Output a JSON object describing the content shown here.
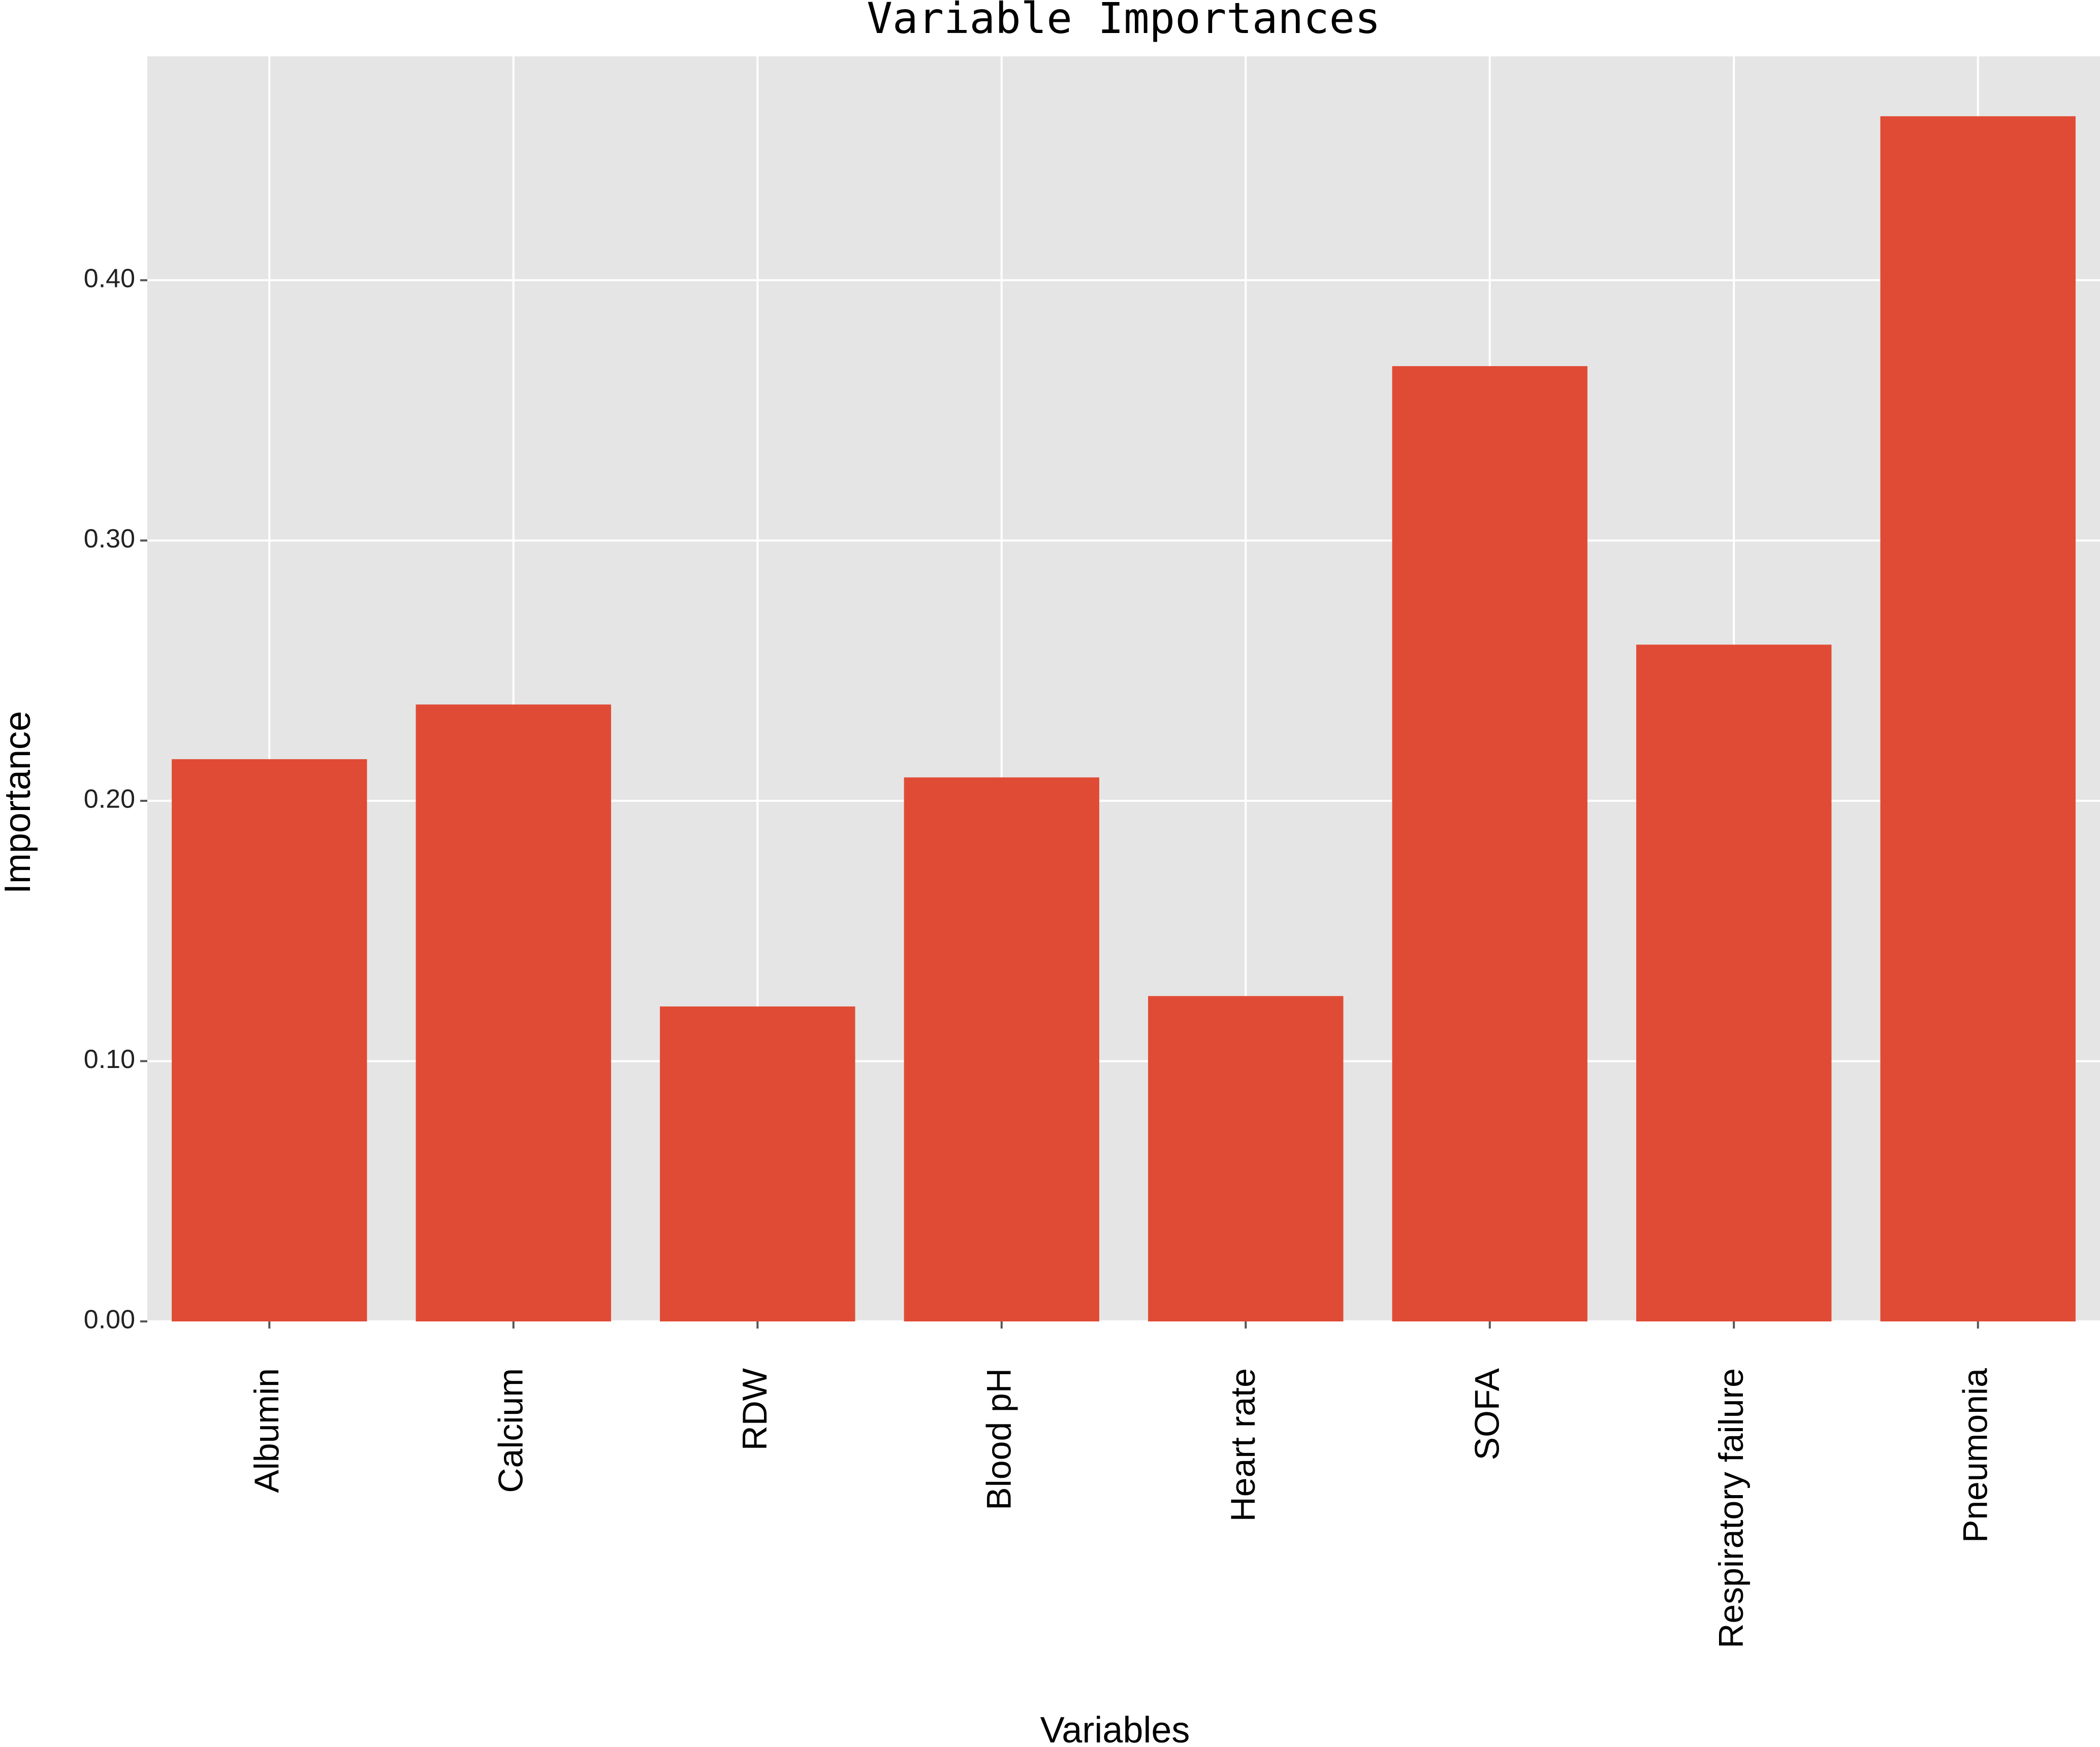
{
  "chart_data": {
    "type": "bar",
    "title": "Variable Importances",
    "x_label": "Variables",
    "y_label": "Importance",
    "categories": [
      "Albumin",
      "Calcium",
      "RDW",
      "Blood pH",
      "Heart rate",
      "SOFA",
      "Respiratory failure",
      "Pneumonia"
    ],
    "values": [
      0.216,
      0.237,
      0.121,
      0.209,
      0.125,
      0.367,
      0.26,
      0.463
    ],
    "color": "#e04b35",
    "ylim": [
      0,
      0.486
    ],
    "yticks": [
      {
        "value": 0,
        "label": "0.00"
      },
      {
        "value": 0.1,
        "label": "0.10"
      },
      {
        "value": 0.2,
        "label": "0.20"
      },
      {
        "value": 0.3,
        "label": "0.30"
      },
      {
        "value": 0.4,
        "label": "0.40"
      }
    ],
    "grid": true
  }
}
